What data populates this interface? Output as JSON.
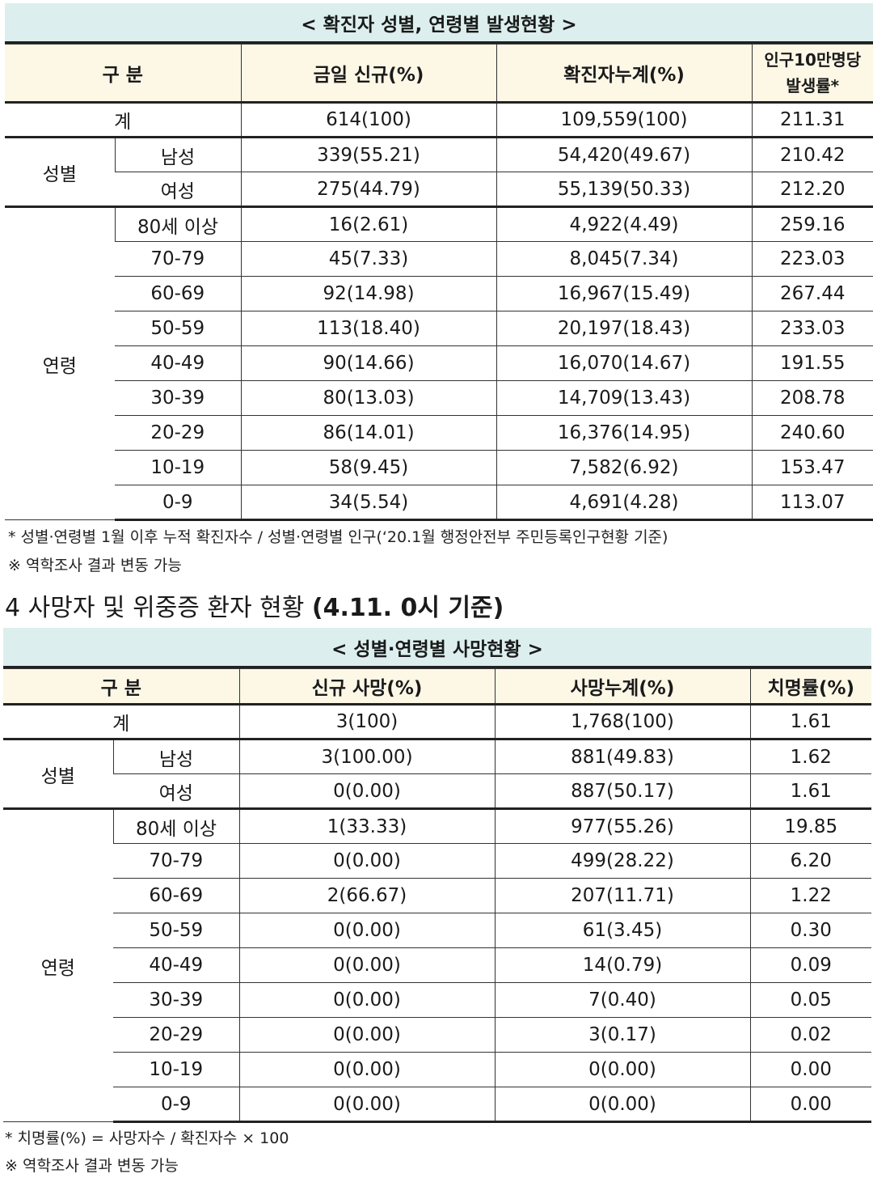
{
  "table1": {
    "caption": "< 확진자 성별, 연령별 발생현황 >",
    "headers": [
      "구 분",
      "금일 신규(%)",
      "확진자누계(%)",
      "인구10만명당",
      "발생률*"
    ],
    "total": {
      "label": "계",
      "new": "614(100)",
      "cum": "109,559(100)",
      "rate": "211.31"
    },
    "sex_group": "성별",
    "sex": [
      {
        "label": "남성",
        "new": "339(55.21)",
        "cum": "54,420(49.67)",
        "rate": "210.42"
      },
      {
        "label": "여성",
        "new": "275(44.79)",
        "cum": "55,139(50.33)",
        "rate": "212.20"
      }
    ],
    "age_group": "연령",
    "age": [
      {
        "label": "80세 이상",
        "new": "16(2.61)",
        "cum": "4,922(4.49)",
        "rate": "259.16"
      },
      {
        "label": "70-79",
        "new": "45(7.33)",
        "cum": "8,045(7.34)",
        "rate": "223.03"
      },
      {
        "label": "60-69",
        "new": "92(14.98)",
        "cum": "16,967(15.49)",
        "rate": "267.44"
      },
      {
        "label": "50-59",
        "new": "113(18.40)",
        "cum": "20,197(18.43)",
        "rate": "233.03"
      },
      {
        "label": "40-49",
        "new": "90(14.66)",
        "cum": "16,070(14.67)",
        "rate": "191.55"
      },
      {
        "label": "30-39",
        "new": "80(13.03)",
        "cum": "14,709(13.43)",
        "rate": "208.78"
      },
      {
        "label": "20-29",
        "new": "86(14.01)",
        "cum": "16,376(14.95)",
        "rate": "240.60"
      },
      {
        "label": "10-19",
        "new": "58(9.45)",
        "cum": "7,582(6.92)",
        "rate": "153.47"
      },
      {
        "label": "0-9",
        "new": "34(5.54)",
        "cum": "4,691(4.28)",
        "rate": "113.07"
      }
    ],
    "notes": [
      "* 성별·연령별 1월 이후 누적 확진자수 / 성별·연령별 인구(‘20.1월 행정안전부 주민등록인구현황 기준)",
      "※ 역학조사 결과 변동 가능"
    ]
  },
  "section4": {
    "title": "4 사망자 및 위중증 환자 현황",
    "title_bold": "(4.11. 0시 기준)"
  },
  "table2": {
    "caption": "< 성별·연령별 사망현황 >",
    "headers": [
      "구 분",
      "신규 사망(%)",
      "사망누계(%)",
      "치명률(%)"
    ],
    "total": {
      "label": "계",
      "new": "3(100)",
      "cum": "1,768(100)",
      "rate": "1.61"
    },
    "sex_group": "성별",
    "sex": [
      {
        "label": "남성",
        "new": "3(100.00)",
        "cum": "881(49.83)",
        "rate": "1.62"
      },
      {
        "label": "여성",
        "new": "0(0.00)",
        "cum": "887(50.17)",
        "rate": "1.61"
      }
    ],
    "age_group": "연령",
    "age": [
      {
        "label": "80세 이상",
        "new": "1(33.33)",
        "cum": "977(55.26)",
        "rate": "19.85"
      },
      {
        "label": "70-79",
        "new": "0(0.00)",
        "cum": "499(28.22)",
        "rate": "6.20"
      },
      {
        "label": "60-69",
        "new": "2(66.67)",
        "cum": "207(11.71)",
        "rate": "1.22"
      },
      {
        "label": "50-59",
        "new": "0(0.00)",
        "cum": "61(3.45)",
        "rate": "0.30"
      },
      {
        "label": "40-49",
        "new": "0(0.00)",
        "cum": "14(0.79)",
        "rate": "0.09"
      },
      {
        "label": "30-39",
        "new": "0(0.00)",
        "cum": "7(0.40)",
        "rate": "0.05"
      },
      {
        "label": "20-29",
        "new": "0(0.00)",
        "cum": "3(0.17)",
        "rate": "0.02"
      },
      {
        "label": "10-19",
        "new": "0(0.00)",
        "cum": "0(0.00)",
        "rate": "0.00"
      },
      {
        "label": "0-9",
        "new": "0(0.00)",
        "cum": "0(0.00)",
        "rate": "0.00"
      }
    ],
    "notes": [
      "* 치명률(%) = 사망자수 / 확진자수 × 100",
      "※ 역학조사 결과 변동 가능"
    ]
  }
}
